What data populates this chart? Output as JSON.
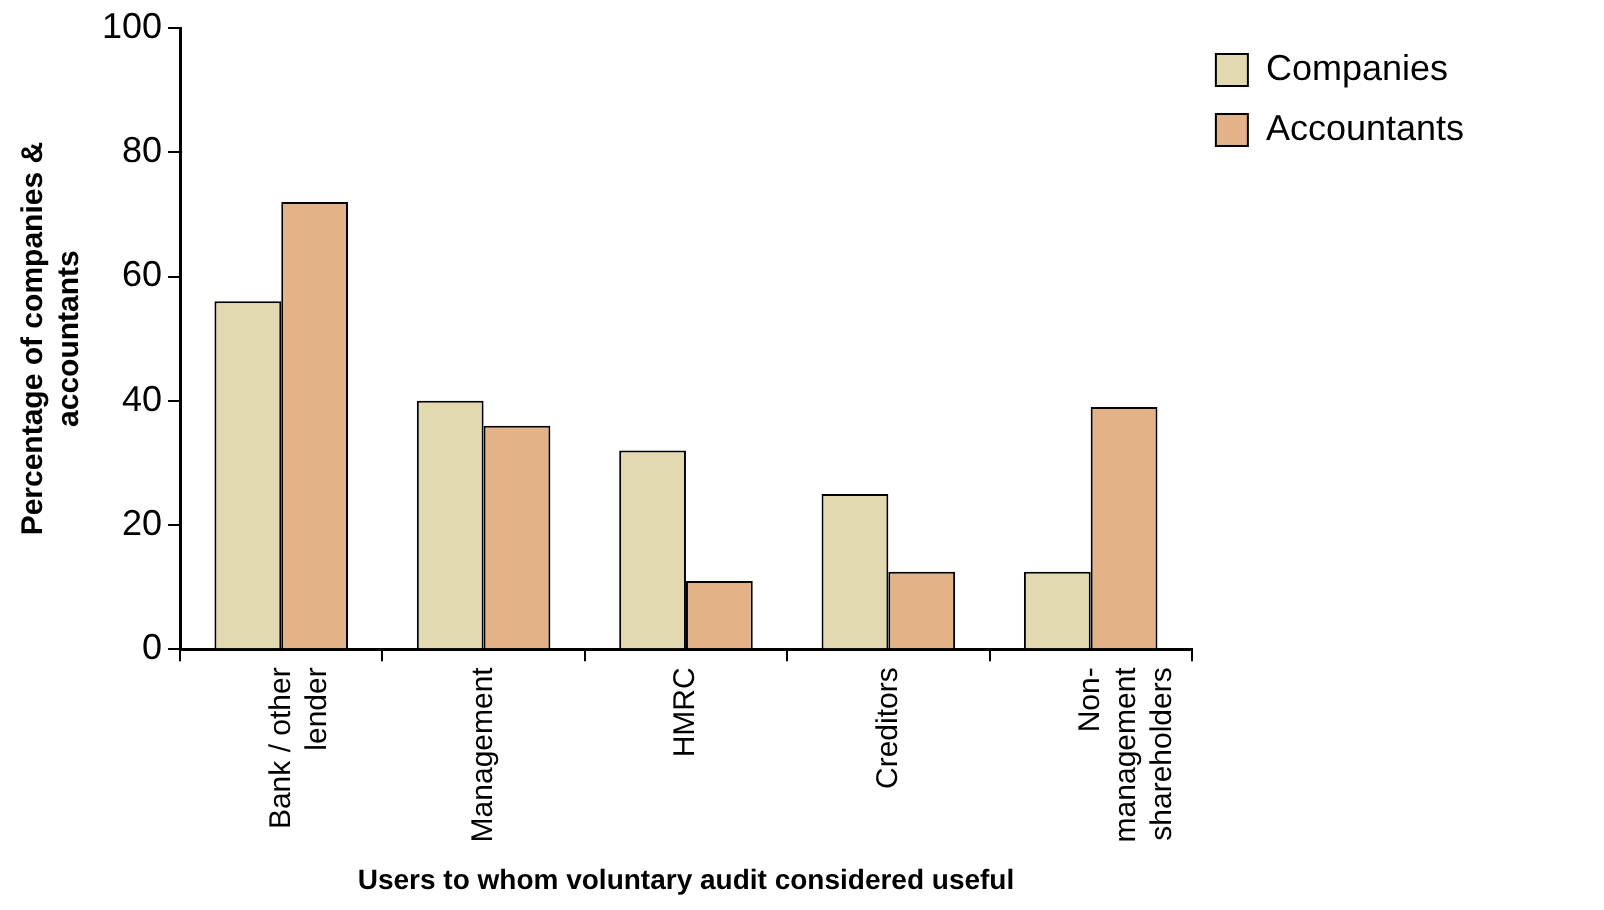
{
  "chart_data": {
    "type": "bar",
    "xlabel": "Users to whom voluntary audit considered useful",
    "ylabel": "Percentage of companies & accountants",
    "categories": [
      "Bank / other lender",
      "Management",
      "HMRC",
      "Creditors",
      "Non-management shareholders"
    ],
    "series": [
      {
        "name": "Companies",
        "color": "#e3d9b0",
        "values": [
          56,
          40,
          32,
          25,
          12.5
        ]
      },
      {
        "name": "Accountants",
        "color": "#e3b286",
        "values": [
          72,
          36,
          11,
          12.5,
          39
        ]
      }
    ],
    "ylim": [
      0,
      100
    ],
    "yticks": [
      0,
      20,
      40,
      60,
      80,
      100
    ],
    "grid": false,
    "legend": "right"
  }
}
